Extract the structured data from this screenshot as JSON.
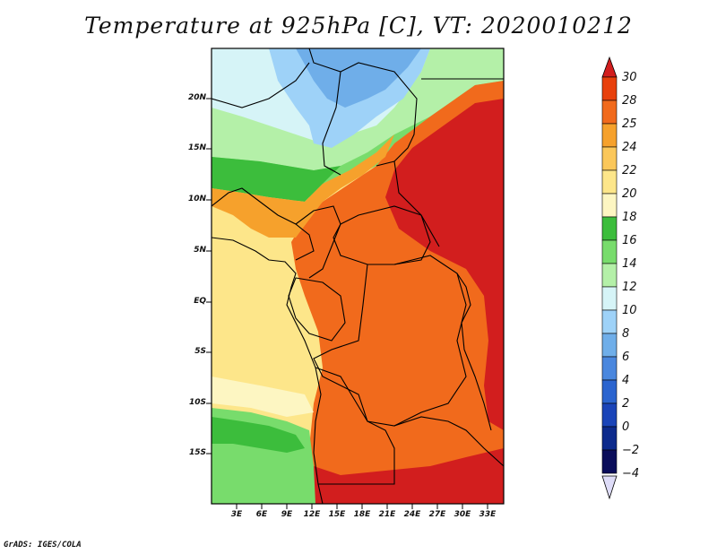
{
  "title": "Temperature at 925hPa [C], VT: 2020010212",
  "credit": "GrADS: IGES/COLA",
  "map": {
    "lat_labels": [
      "20N",
      "15N",
      "10N",
      "5N",
      "EQ",
      "5S",
      "10S",
      "15S"
    ],
    "lon_labels": [
      "3E",
      "6E",
      "9E",
      "12E",
      "15E",
      "18E",
      "21E",
      "24E",
      "27E",
      "30E",
      "33E"
    ]
  },
  "colorbar": {
    "levels": [
      "30",
      "28",
      "25",
      "24",
      "22",
      "20",
      "18",
      "16",
      "14",
      "12",
      "10",
      "8",
      "6",
      "4",
      "2",
      "0",
      "−2",
      "−4"
    ],
    "colors": [
      "#d21e1e",
      "#e8400c",
      "#f16a1c",
      "#f6a12c",
      "#fbc75a",
      "#fde68a",
      "#fdf6c2",
      "#3cbd3c",
      "#78dc6c",
      "#b4f0a8",
      "#d6f4f7",
      "#9ed2f8",
      "#6faee9",
      "#4a87de",
      "#2b64cf",
      "#1a44b8",
      "#0c2a8c",
      "#0a0d5a"
    ],
    "overflow_low_color": "#dedcf8"
  },
  "legend_tokens": {
    "tropical_hot": "#d21e1e",
    "warm_orange": "#f16a1c",
    "pale_yellow": "#fde68a",
    "green": "#3cbd3c",
    "light_blue": "#9ed2f8"
  }
}
